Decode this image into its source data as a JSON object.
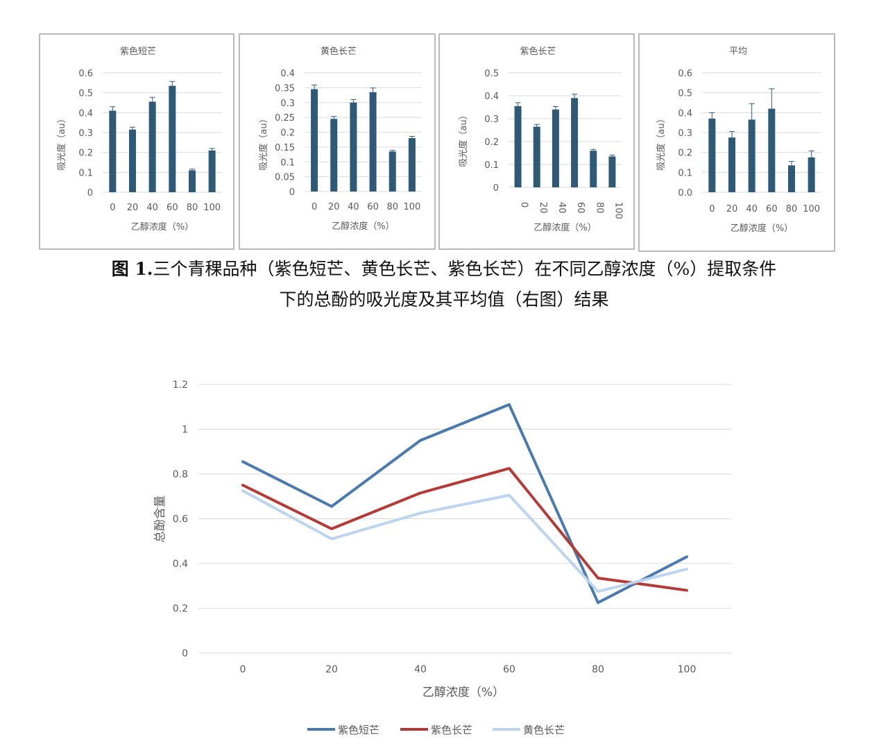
{
  "figure_caption": {
    "label": "图 1.",
    "line1": "三个青稞品种（紫色短芒、黄色长芒、紫色长芒）在不同乙醇浓度（%）提取条件",
    "line2": "下的总酚的吸光度及其平均值（右图）结果"
  },
  "colors": {
    "bar": "#2e5a78",
    "grid": "#d9d9d9",
    "axis_text": "#595959",
    "line_purple_short": "#4a7aad",
    "line_purple_long": "#b33a36",
    "line_yellow_long": "#bcd4ee"
  },
  "chart_data": [
    {
      "type": "bar",
      "title": "紫色短芒",
      "categories": [
        "0",
        "20",
        "40",
        "60",
        "80",
        "100"
      ],
      "values": [
        0.41,
        0.315,
        0.455,
        0.535,
        0.11,
        0.21
      ],
      "errors": [
        0.02,
        0.012,
        0.022,
        0.022,
        0.006,
        0.01
      ],
      "yticks": [
        "0",
        "0.1",
        "0.2",
        "0.3",
        "0.4",
        "0.5",
        "0.6"
      ],
      "ylim": [
        0,
        0.6
      ],
      "xlabel": "乙醇浓度（%）",
      "ylabel": "吸光度（au）",
      "grid": true
    },
    {
      "type": "bar",
      "title": "黄色长芒",
      "categories": [
        "0",
        "20",
        "40",
        "60",
        "80",
        "100"
      ],
      "values": [
        0.345,
        0.245,
        0.3,
        0.335,
        0.135,
        0.18
      ],
      "errors": [
        0.014,
        0.008,
        0.01,
        0.014,
        0.004,
        0.006
      ],
      "yticks": [
        "0",
        "0.05",
        "0.1",
        "0.15",
        "0.2",
        "0.25",
        "0.3",
        "0.35",
        "0.4"
      ],
      "ylim": [
        0,
        0.4
      ],
      "xlabel": "乙醇浓度（%）",
      "ylabel": "吸光度（au）",
      "grid": true
    },
    {
      "type": "bar",
      "title": "紫色长芒",
      "categories": [
        "0",
        "20",
        "40",
        "60",
        "80",
        "100"
      ],
      "values": [
        0.355,
        0.265,
        0.34,
        0.39,
        0.16,
        0.135
      ],
      "errors": [
        0.015,
        0.01,
        0.013,
        0.017,
        0.006,
        0.006
      ],
      "yticks": [
        "0",
        "0.1",
        "0.2",
        "0.3",
        "0.4",
        "0.5"
      ],
      "ylim": [
        0,
        0.5
      ],
      "xlabel": "乙醇浓度（%）",
      "ylabel": "吸光度（au）",
      "rotate_xticks": true,
      "grid": true
    },
    {
      "type": "bar",
      "title": "平均",
      "categories": [
        "0",
        "20",
        "40",
        "60",
        "80",
        "100"
      ],
      "values": [
        0.37,
        0.275,
        0.365,
        0.42,
        0.135,
        0.175
      ],
      "errors": [
        0.03,
        0.03,
        0.08,
        0.1,
        0.02,
        0.033
      ],
      "yticks": [
        "0.0",
        "0.1",
        "0.2",
        "0.3",
        "0.4",
        "0.5",
        "0.6"
      ],
      "ylim": [
        0,
        0.6
      ],
      "xlabel": "乙醇浓度（%）",
      "ylabel": "吸光度（au）",
      "grid": true
    },
    {
      "type": "line",
      "categories": [
        "0",
        "20",
        "40",
        "60",
        "80",
        "100"
      ],
      "yticks": [
        "0",
        "0.2",
        "0.4",
        "0.6",
        "0.8",
        "1",
        "1.2"
      ],
      "ylim": [
        0,
        1.2
      ],
      "xlabel": "乙醇浓度（%）",
      "ylabel": "总酚含量",
      "grid": true,
      "legend_position": "bottom",
      "series": [
        {
          "name": "紫色短芒",
          "values": [
            0.855,
            0.655,
            0.95,
            1.11,
            0.225,
            0.43
          ]
        },
        {
          "name": "紫色长芒",
          "values": [
            0.75,
            0.555,
            0.715,
            0.825,
            0.335,
            0.28
          ]
        },
        {
          "name": "黄色长芒",
          "values": [
            0.725,
            0.51,
            0.625,
            0.705,
            0.275,
            0.375
          ]
        }
      ]
    }
  ]
}
